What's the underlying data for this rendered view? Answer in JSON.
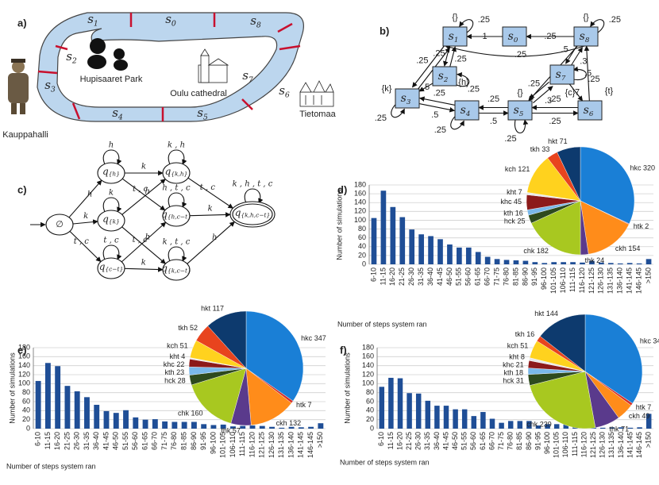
{
  "panel_labels": [
    "a)",
    "b)",
    "c)",
    "d)",
    "e)",
    "f)"
  ],
  "map": {
    "segments": [
      {
        "letter": "s",
        "sub": "0"
      },
      {
        "letter": "s",
        "sub": "1"
      },
      {
        "letter": "s",
        "sub": "2"
      },
      {
        "letter": "s",
        "sub": "3"
      },
      {
        "letter": "s",
        "sub": "4"
      },
      {
        "letter": "s",
        "sub": "5"
      },
      {
        "letter": "s",
        "sub": "6"
      },
      {
        "letter": "s",
        "sub": "7"
      },
      {
        "letter": "s",
        "sub": "8"
      }
    ],
    "places": [
      "Hupisaaret Park",
      "Oulu cathedral",
      "Kauppahalli",
      "Tietomaa"
    ]
  },
  "markov": {
    "nodes": [
      {
        "id": "s0",
        "letter": "s",
        "sub": "0"
      },
      {
        "id": "s1",
        "letter": "s",
        "sub": "1",
        "props": "{}"
      },
      {
        "id": "s2",
        "letter": "s",
        "sub": "2",
        "props": "{h}"
      },
      {
        "id": "s3",
        "letter": "s",
        "sub": "3",
        "props": "{k}"
      },
      {
        "id": "s4",
        "letter": "s",
        "sub": "4"
      },
      {
        "id": "s5",
        "letter": "s",
        "sub": "5",
        "props": "{}"
      },
      {
        "id": "s6",
        "letter": "s",
        "sub": "6",
        "props": "{t}"
      },
      {
        "id": "s7",
        "letter": "s",
        "sub": "7",
        "props": "{c}"
      },
      {
        "id": "s8",
        "letter": "s",
        "sub": "8",
        "props": "{}"
      }
    ],
    "edges": [
      {
        "from": "s0",
        "to": "s1",
        "label": "1"
      },
      {
        "from": "s8",
        "to": "s0",
        "label": ".25"
      },
      {
        "from": "s1",
        "to": "s1",
        "label": ".25"
      },
      {
        "from": "s8",
        "to": "s8",
        "label": ".25"
      },
      {
        "from": "s8",
        "to": "s1",
        "label": ".25"
      },
      {
        "from": "s1",
        "to": "s3",
        "label": ".25"
      },
      {
        "from": "s3",
        "to": "s1",
        "label": ".25"
      },
      {
        "from": "s1",
        "to": "s2",
        "label": ".25"
      },
      {
        "from": "s2",
        "to": "s1",
        "label": ".25"
      },
      {
        "from": "s2",
        "to": "s2",
        "label": ".25"
      },
      {
        "from": "s2",
        "to": "s3",
        "label": ".5"
      },
      {
        "from": "s3",
        "to": "s3",
        "label": ".25"
      },
      {
        "from": "s3",
        "to": "s4",
        "label": ".5"
      },
      {
        "from": "s4",
        "to": "s3",
        "label": ".25"
      },
      {
        "from": "s4",
        "to": "s4",
        "label": ".25"
      },
      {
        "from": "s4",
        "to": "s5",
        "label": ".5"
      },
      {
        "from": "s5",
        "to": "s4",
        "label": ".25"
      },
      {
        "from": "s5",
        "to": "s5",
        "label": ".25"
      },
      {
        "from": "s5",
        "to": "s7",
        "label": ".3"
      },
      {
        "from": "s7",
        "to": "s5",
        "label": ".25"
      },
      {
        "from": "s7",
        "to": "s7",
        "label": ".25"
      },
      {
        "from": "s8",
        "to": "s7",
        "label": ".5"
      },
      {
        "from": "s7",
        "to": "s8",
        "label": ".3"
      },
      {
        "from": "s7",
        "to": "s6",
        "label": ".7"
      },
      {
        "from": "s8",
        "to": "s5",
        "label": ".2"
      },
      {
        "from": "s5",
        "to": "s6",
        "label": ".25"
      },
      {
        "from": "s6",
        "to": "s5",
        "label": ".25"
      },
      {
        "from": "s6",
        "to": "s8",
        "label": ".5"
      }
    ]
  },
  "automaton": {
    "nodes": [
      {
        "id": "e",
        "text": "∅"
      },
      {
        "id": "h",
        "letter": "q",
        "sub": "{h}"
      },
      {
        "id": "k",
        "letter": "q",
        "sub": "{k}"
      },
      {
        "id": "c",
        "letter": "q",
        "sub": "{c−t}"
      },
      {
        "id": "kh",
        "letter": "q",
        "sub": "{k,h}"
      },
      {
        "id": "hc",
        "letter": "q",
        "sub": "{h,c−t}"
      },
      {
        "id": "kc",
        "letter": "q",
        "sub": "{k,c−t}"
      },
      {
        "id": "f",
        "letter": "q",
        "sub": "{k,h,c−t}"
      }
    ],
    "edges": [
      {
        "from": "e",
        "to": "h",
        "label": "h"
      },
      {
        "from": "e",
        "to": "k",
        "label": "k"
      },
      {
        "from": "e",
        "to": "c",
        "label": "t , c"
      },
      {
        "from": "h",
        "to": "h",
        "label": "h"
      },
      {
        "from": "k",
        "to": "k",
        "label": "k"
      },
      {
        "from": "c",
        "to": "c",
        "label": "t , c"
      },
      {
        "from": "h",
        "to": "kh",
        "label": "k"
      },
      {
        "from": "h",
        "to": "hc",
        "label": "t , c"
      },
      {
        "from": "k",
        "to": "kh",
        "label": "h"
      },
      {
        "from": "k",
        "to": "kc",
        "label": "t , c"
      },
      {
        "from": "c",
        "to": "hc",
        "label": "h"
      },
      {
        "from": "c",
        "to": "kc",
        "label": "k"
      },
      {
        "from": "kh",
        "to": "kh",
        "label": "k , h"
      },
      {
        "from": "hc",
        "to": "hc",
        "label": "h , t , c"
      },
      {
        "from": "kc",
        "to": "kc",
        "label": "k , t , c"
      },
      {
        "from": "kh",
        "to": "f",
        "label": "t , c"
      },
      {
        "from": "hc",
        "to": "f",
        "label": "k"
      },
      {
        "from": "kc",
        "to": "f",
        "label": "h"
      },
      {
        "from": "f",
        "to": "f",
        "label": "k , h , t , c"
      }
    ]
  },
  "chart_data": [
    {
      "type": "bar",
      "ylabel": "Number of simulations",
      "xlabel": "Number of steps system ran",
      "color": "#1f4e96",
      "grid": true,
      "categories": [
        "6-10",
        "11-15",
        "16-20",
        "21-25",
        "26-30",
        "31-35",
        "36-40",
        "41-45",
        "46-50",
        "51-55",
        "56-60",
        "61-65",
        "66-70",
        "71-75",
        "76-80",
        "81-85",
        "86-90",
        "91-95",
        "96-100",
        "101-105",
        "106-110",
        "111-115",
        "116-120",
        "121-125",
        "126-130",
        "131-135",
        "136-140",
        "141-145",
        "146-145",
        ">150"
      ],
      "values": [
        105,
        167,
        130,
        107,
        79,
        68,
        64,
        57,
        45,
        38,
        38,
        28,
        17,
        12,
        10,
        9,
        8,
        5,
        3,
        5,
        5,
        5,
        4,
        8,
        4,
        3,
        2,
        3,
        2,
        12
      ],
      "ylim": [
        0,
        180
      ],
      "yticks": [
        0,
        20,
        40,
        60,
        80,
        100,
        120,
        140,
        160,
        180
      ]
    },
    {
      "type": "pie",
      "labels": [
        "hkc",
        "htk",
        "ckh",
        "thk",
        "chk",
        "hck",
        "kth",
        "khc",
        "kht",
        "kch",
        "tkh",
        "hkt"
      ],
      "values": [
        320,
        2,
        154,
        24,
        182,
        25,
        16,
        45,
        7,
        121,
        33,
        71
      ],
      "colors": [
        "#1a7fd6",
        "#d4302a",
        "#ff8c1a",
        "#5a3a8c",
        "#a8c820",
        "#2e4a1e",
        "#7ab8ea",
        "#8c1a1a",
        "#e8e8e8",
        "#ffd21e",
        "#e8441e",
        "#0d3a6e"
      ]
    },
    {
      "type": "bar",
      "ylabel": "Number of simulations",
      "xlabel": "Number of steps system ran",
      "color": "#1f4e96",
      "grid": true,
      "categories": [
        "6-10",
        "11-15",
        "16-20",
        "21-25",
        "26-30",
        "31-35",
        "36-40",
        "41-45",
        "46-50",
        "51-55",
        "56-60",
        "61-65",
        "66-70",
        "71-75",
        "76-80",
        "81-85",
        "86-90",
        "91-95",
        "96-100",
        "101-105",
        "106-110",
        "111-115",
        "116-120",
        "121-125",
        "126-130",
        "131-135",
        "136-140",
        "141-145",
        "146-145",
        ">150"
      ],
      "values": [
        106,
        146,
        139,
        95,
        83,
        70,
        53,
        39,
        35,
        41,
        25,
        20,
        21,
        16,
        15,
        15,
        15,
        10,
        8,
        9,
        5,
        6,
        7,
        6,
        4,
        2,
        4,
        3,
        4,
        12
      ],
      "ylim": [
        0,
        180
      ],
      "yticks": [
        0,
        20,
        40,
        60,
        80,
        100,
        120,
        140,
        160,
        180
      ]
    },
    {
      "type": "pie",
      "labels": [
        "hkc",
        "htk",
        "ckh",
        "thk",
        "chk",
        "hck",
        "kth",
        "khc",
        "kht",
        "kch",
        "tkh",
        "hkt"
      ],
      "values": [
        347,
        7,
        132,
        57,
        160,
        28,
        23,
        22,
        4,
        51,
        52,
        117
      ],
      "colors": [
        "#1a7fd6",
        "#d4302a",
        "#ff8c1a",
        "#5a3a8c",
        "#a8c820",
        "#2e4a1e",
        "#7ab8ea",
        "#8c1a1a",
        "#e8e8e8",
        "#ffd21e",
        "#e8441e",
        "#0d3a6e"
      ]
    },
    {
      "type": "bar",
      "ylabel": "Number of simulations",
      "xlabel": "Number of steps system ran",
      "color": "#1f4e96",
      "grid": true,
      "categories": [
        "6-10",
        "11-15",
        "16-20",
        "21-25",
        "26-30",
        "31-35",
        "36-40",
        "41-45",
        "46-50",
        "51-55",
        "56-60",
        "61-65",
        "66-70",
        "71-75",
        "76-80",
        "81-85",
        "86-90",
        "91-95",
        "96-100",
        "101-105",
        "106-110",
        "111-115",
        "116-120",
        "121-125",
        "126-130",
        "131-135",
        "136-140",
        "141-145",
        "146-145",
        ">150"
      ],
      "values": [
        93,
        113,
        112,
        79,
        78,
        62,
        51,
        51,
        43,
        43,
        28,
        37,
        22,
        13,
        17,
        17,
        17,
        7,
        10,
        10,
        10,
        12,
        6,
        4,
        2,
        3,
        3,
        2,
        3,
        33
      ],
      "ylim": [
        0,
        180
      ],
      "yticks": [
        0,
        20,
        40,
        60,
        80,
        100,
        120,
        140,
        160,
        180
      ]
    },
    {
      "type": "pie",
      "labels": [
        "hkc",
        "htk",
        "ckh",
        "thk",
        "chk",
        "hck",
        "kth",
        "khc",
        "kht",
        "kch",
        "tkh",
        "hkt"
      ],
      "values": [
        344,
        7,
        49,
        71,
        239,
        31,
        18,
        21,
        8,
        51,
        16,
        144
      ],
      "colors": [
        "#1a7fd6",
        "#d4302a",
        "#ff8c1a",
        "#5a3a8c",
        "#a8c820",
        "#2e4a1e",
        "#7ab8ea",
        "#8c1a1a",
        "#e8e8e8",
        "#ffd21e",
        "#e8441e",
        "#0d3a6e"
      ]
    }
  ]
}
